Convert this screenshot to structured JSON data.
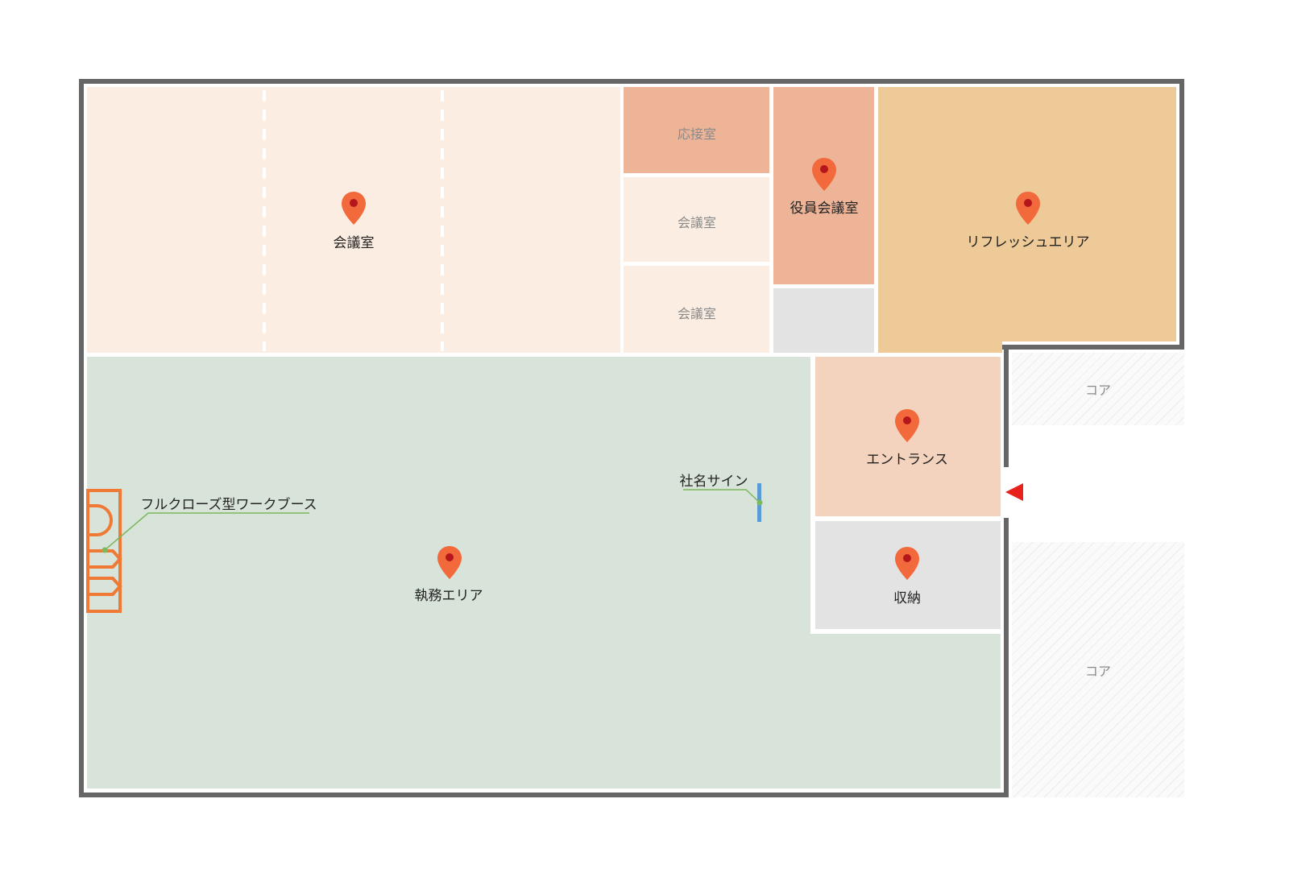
{
  "rooms": {
    "meeting_large": "会議室",
    "reception": "応接室",
    "meeting_a": "会議室",
    "meeting_b": "会議室",
    "executive_meeting": "役員会議室",
    "refresh_area": "リフレッシュエリア",
    "core_top": "コア",
    "core_bottom": "コア",
    "entrance": "エントランス",
    "storage": "収納",
    "work_area": "執務エリア"
  },
  "callouts": {
    "company_sign": "社名サイン",
    "work_booth": "フルクローズ型ワークブース"
  },
  "colors": {
    "meeting_light": "#fbede2",
    "reception": "#eeb497",
    "executive": "#eeb497",
    "refresh": "#edca98",
    "work": "#d8e3da",
    "entrance": "#f3d3bd",
    "storage": "#e3e3e3",
    "pin": "#f26a3c",
    "booth": "#ee7a35",
    "sign": "#5b9bd5",
    "leader": "#7cb85c",
    "entry_arrow": "#e8211c"
  }
}
